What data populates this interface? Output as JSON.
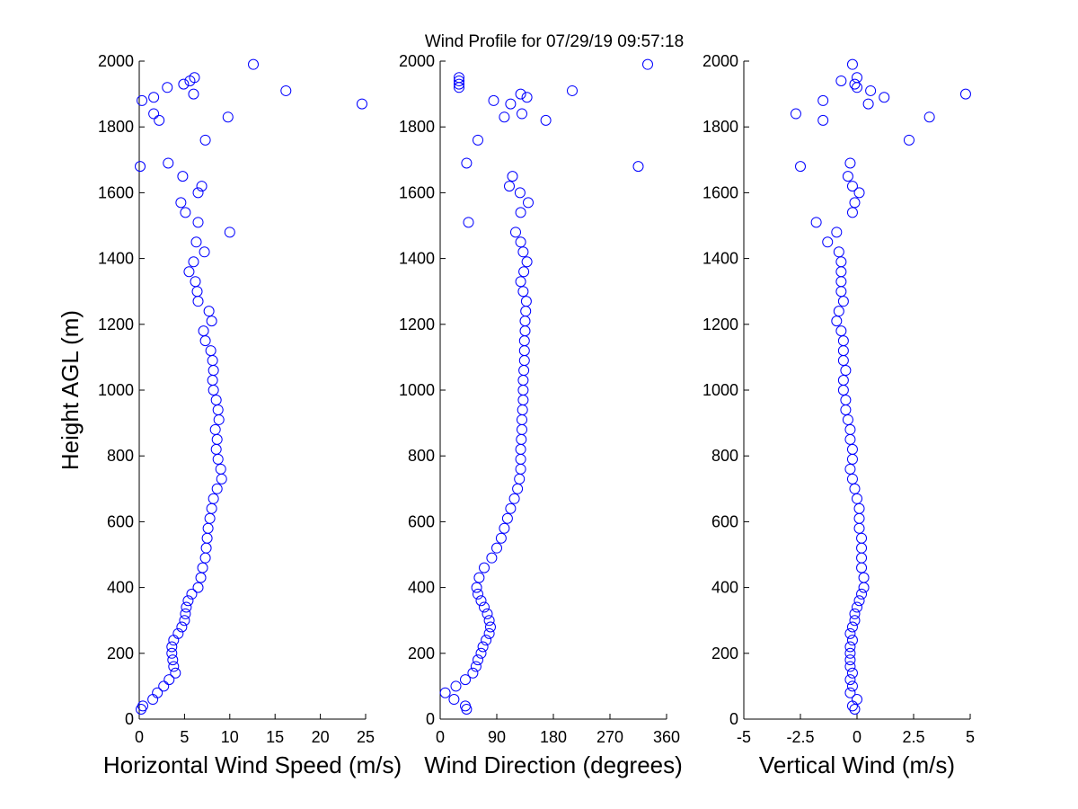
{
  "title": "Wind Profile for  07/29/19 09:57:18",
  "chart_data": [
    {
      "type": "scatter",
      "xlabel": "Horizontal Wind Speed (m/s)",
      "ylabel": "Height AGL (m)",
      "color": "#0000ff",
      "xlim": [
        0,
        25
      ],
      "xticks": [
        0,
        5,
        10,
        15,
        20,
        25
      ],
      "ylim": [
        0,
        2000
      ],
      "yticks": [
        0,
        200,
        400,
        600,
        800,
        1000,
        1200,
        1400,
        1600,
        1800,
        2000
      ],
      "x": [
        0.2,
        0.4,
        1.5,
        2,
        2.7,
        3.3,
        4,
        3.8,
        3.7,
        3.6,
        3.6,
        3.8,
        4.3,
        4.7,
        5,
        5.1,
        5.2,
        5.4,
        5.8,
        6.5,
        6.8,
        7,
        7.3,
        7.4,
        7.5,
        7.6,
        7.8,
        8,
        8.2,
        8.6,
        9.1,
        9,
        8.7,
        8.5,
        8.6,
        8.4,
        8.8,
        8.7,
        8.5,
        8.2,
        8.1,
        8.2,
        8.1,
        7.9,
        7.3,
        7.1,
        8,
        7.7,
        6.5,
        6.4,
        6.2,
        5.5,
        6,
        7.2,
        6.3,
        10,
        6.5,
        5.1,
        4.6,
        6.5,
        6.9,
        4.8,
        0.1,
        3.2,
        7.3,
        2.2,
        9.8,
        1.6,
        24.6,
        0.3,
        1.6,
        6,
        16.2,
        3.1,
        4.9,
        5.6,
        6.1,
        12.6
      ],
      "y": [
        30,
        40,
        60,
        80,
        100,
        120,
        140,
        160,
        180,
        200,
        220,
        240,
        260,
        280,
        300,
        320,
        340,
        360,
        380,
        400,
        430,
        460,
        490,
        520,
        550,
        580,
        610,
        640,
        670,
        700,
        730,
        760,
        790,
        820,
        850,
        880,
        910,
        940,
        970,
        1000,
        1030,
        1060,
        1090,
        1120,
        1150,
        1180,
        1210,
        1240,
        1270,
        1300,
        1330,
        1360,
        1390,
        1420,
        1450,
        1480,
        1510,
        1540,
        1570,
        1600,
        1620,
        1650,
        1680,
        1690,
        1760,
        1820,
        1830,
        1840,
        1870,
        1880,
        1890,
        1900,
        1910,
        1920,
        1930,
        1940,
        1950,
        1990
      ]
    },
    {
      "type": "scatter",
      "xlabel": "Wind Direction (degrees)",
      "color": "#0000ff",
      "xlim": [
        0,
        360
      ],
      "xticks": [
        0,
        90,
        180,
        270,
        360
      ],
      "ylim": [
        0,
        2000
      ],
      "yticks": [
        0,
        200,
        400,
        600,
        800,
        1000,
        1200,
        1400,
        1600,
        1800,
        2000
      ],
      "x": [
        42,
        40,
        22,
        8,
        25,
        40,
        52,
        57,
        60,
        65,
        68,
        73,
        78,
        80,
        78,
        75,
        70,
        65,
        60,
        58,
        62,
        70,
        82,
        90,
        97,
        102,
        107,
        112,
        118,
        123,
        126,
        128,
        128,
        128,
        129,
        130,
        130,
        131,
        132,
        132,
        132,
        133,
        134,
        134,
        134,
        135,
        135,
        136,
        137,
        132,
        128,
        133,
        138,
        132,
        128,
        120,
        45,
        128,
        140,
        127,
        110,
        115,
        315,
        42,
        60,
        168,
        102,
        130,
        112,
        85,
        138,
        128,
        210,
        30,
        30,
        30,
        30,
        330
      ],
      "y": [
        30,
        40,
        60,
        80,
        100,
        120,
        140,
        160,
        180,
        200,
        220,
        240,
        260,
        280,
        300,
        320,
        340,
        360,
        380,
        400,
        430,
        460,
        490,
        520,
        550,
        580,
        610,
        640,
        670,
        700,
        730,
        760,
        790,
        820,
        850,
        880,
        910,
        940,
        970,
        1000,
        1030,
        1060,
        1090,
        1120,
        1150,
        1180,
        1210,
        1240,
        1270,
        1300,
        1330,
        1360,
        1390,
        1420,
        1450,
        1480,
        1510,
        1540,
        1570,
        1600,
        1620,
        1650,
        1680,
        1690,
        1760,
        1820,
        1830,
        1840,
        1870,
        1880,
        1890,
        1900,
        1910,
        1920,
        1930,
        1940,
        1950,
        1990
      ]
    },
    {
      "type": "scatter",
      "xlabel": "Vertical Wind (m/s)",
      "color": "#0000ff",
      "xlim": [
        -5,
        5
      ],
      "xticks": [
        -5,
        -2.5,
        0,
        2.5,
        5
      ],
      "ylim": [
        0,
        2000
      ],
      "yticks": [
        0,
        200,
        400,
        600,
        800,
        1000,
        1200,
        1400,
        1600,
        1800,
        2000
      ],
      "x": [
        -0.1,
        -0.2,
        0,
        -0.3,
        -0.2,
        -0.3,
        -0.2,
        -0.3,
        -0.3,
        -0.3,
        -0.3,
        -0.2,
        -0.3,
        -0.2,
        -0.1,
        -0.1,
        0,
        0.1,
        0.2,
        0.3,
        0.3,
        0.2,
        0.2,
        0.2,
        0.2,
        0.1,
        0.1,
        0.1,
        0,
        -0.1,
        -0.2,
        -0.3,
        -0.2,
        -0.2,
        -0.3,
        -0.3,
        -0.4,
        -0.5,
        -0.5,
        -0.6,
        -0.6,
        -0.5,
        -0.6,
        -0.6,
        -0.6,
        -0.7,
        -0.9,
        -0.8,
        -0.6,
        -0.7,
        -0.7,
        -0.7,
        -0.7,
        -0.8,
        -1.3,
        -0.9,
        -1.8,
        -0.2,
        -0.1,
        0.1,
        -0.2,
        -0.4,
        -2.5,
        -0.3,
        2.3,
        -1.5,
        3.2,
        -2.7,
        0.5,
        -1.5,
        1.2,
        4.8,
        0.6,
        0,
        -0.1,
        -0.7,
        0,
        -0.2
      ],
      "y": [
        30,
        40,
        60,
        80,
        100,
        120,
        140,
        160,
        180,
        200,
        220,
        240,
        260,
        280,
        300,
        320,
        340,
        360,
        380,
        400,
        430,
        460,
        490,
        520,
        550,
        580,
        610,
        640,
        670,
        700,
        730,
        760,
        790,
        820,
        850,
        880,
        910,
        940,
        970,
        1000,
        1030,
        1060,
        1090,
        1120,
        1150,
        1180,
        1210,
        1240,
        1270,
        1300,
        1330,
        1360,
        1390,
        1420,
        1450,
        1480,
        1510,
        1540,
        1570,
        1600,
        1620,
        1650,
        1680,
        1690,
        1760,
        1820,
        1830,
        1840,
        1870,
        1880,
        1890,
        1900,
        1910,
        1920,
        1930,
        1940,
        1950,
        1990
      ]
    }
  ]
}
